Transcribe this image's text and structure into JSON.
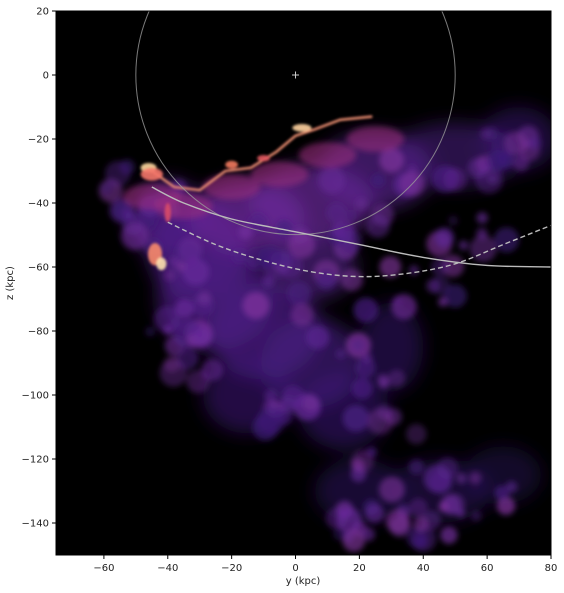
{
  "chart_data": {
    "type": "heatmap",
    "title": "",
    "xlabel": "y (kpc)",
    "ylabel": "z (kpc)",
    "xlim": [
      -75,
      80
    ],
    "ylim": [
      -150,
      20
    ],
    "xticks": [
      -60,
      -40,
      -20,
      0,
      20,
      40,
      60,
      80
    ],
    "yticks": [
      20,
      0,
      -20,
      -40,
      -60,
      -80,
      -100,
      -120,
      -140
    ],
    "xtick_labels": [
      "−60",
      "−40",
      "−20",
      "0",
      "20",
      "40",
      "60",
      "80"
    ],
    "ytick_labels": [
      "20",
      "0",
      "−20",
      "−40",
      "−60",
      "−80",
      "−100",
      "−120",
      "−140"
    ],
    "colormap": "magma",
    "background_color": "#000000",
    "center_marker": {
      "x": 0,
      "y": 0,
      "symbol": "+"
    },
    "reference_circle": {
      "center": [
        0,
        0
      ],
      "radius": 50
    },
    "orbit_solid": [
      [
        -45,
        -35
      ],
      [
        -35,
        -40
      ],
      [
        -20,
        -45
      ],
      [
        0,
        -49
      ],
      [
        20,
        -53
      ],
      [
        40,
        -57
      ],
      [
        60,
        -59.5
      ],
      [
        80,
        -60
      ]
    ],
    "orbit_dashed": [
      [
        -40,
        -46
      ],
      [
        -25,
        -53
      ],
      [
        -10,
        -58
      ],
      [
        5,
        -61.5
      ],
      [
        20,
        -63
      ],
      [
        35,
        -62
      ],
      [
        50,
        -59
      ],
      [
        65,
        -53
      ],
      [
        80,
        -47
      ]
    ],
    "grid": false,
    "legend": "none"
  }
}
